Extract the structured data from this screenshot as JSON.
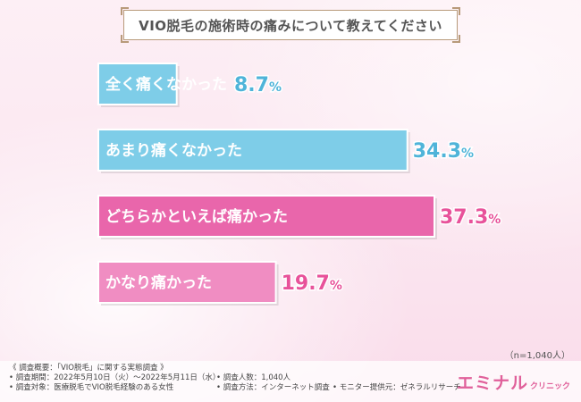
{
  "title": "VIO脱毛の施術時の痛みについて教えてください",
  "sample_size": "（n=1,040人）",
  "chart_data": {
    "type": "bar",
    "orientation": "horizontal",
    "title": "VIO脱毛の施術時の痛みについて教えてください",
    "categories": [
      "全く痛くなかった",
      "あまり痛くなかった",
      "どちらかといえば痛かった",
      "かなり痛かった"
    ],
    "values": [
      8.7,
      34.3,
      37.3,
      19.7
    ],
    "value_suffix": "%",
    "colors": {
      "bar_blue": "#7ecde8",
      "bar_pink_dark": "#e966ab",
      "bar_pink_light": "#f08dc2",
      "value_blue": "#4fb4d9",
      "value_pink": "#e8529a"
    },
    "bar_colors": [
      "#7ecde8",
      "#7ecde8",
      "#e966ab",
      "#f08dc2"
    ],
    "value_colors": [
      "#4fb4d9",
      "#4fb4d9",
      "#e8529a",
      "#e8529a"
    ],
    "xlim": [
      0,
      37.3
    ],
    "grid": false,
    "legend": "none"
  },
  "footer": {
    "notes": [
      "《 調査概要：「VIO脱毛」に関する実態調査 》",
      "• 調査期間：2022年5月10日（火）～2022年5月11日（水）",
      "• 調査人数：1,040人",
      "• 調査対象：医療脱毛でVIO脱毛経験のある女性",
      "• 調査方法：インターネット調査",
      "• モニター提供元：ゼネラルリサーチ"
    ],
    "brand": "エミナル",
    "brand_sub": "クリニック"
  }
}
